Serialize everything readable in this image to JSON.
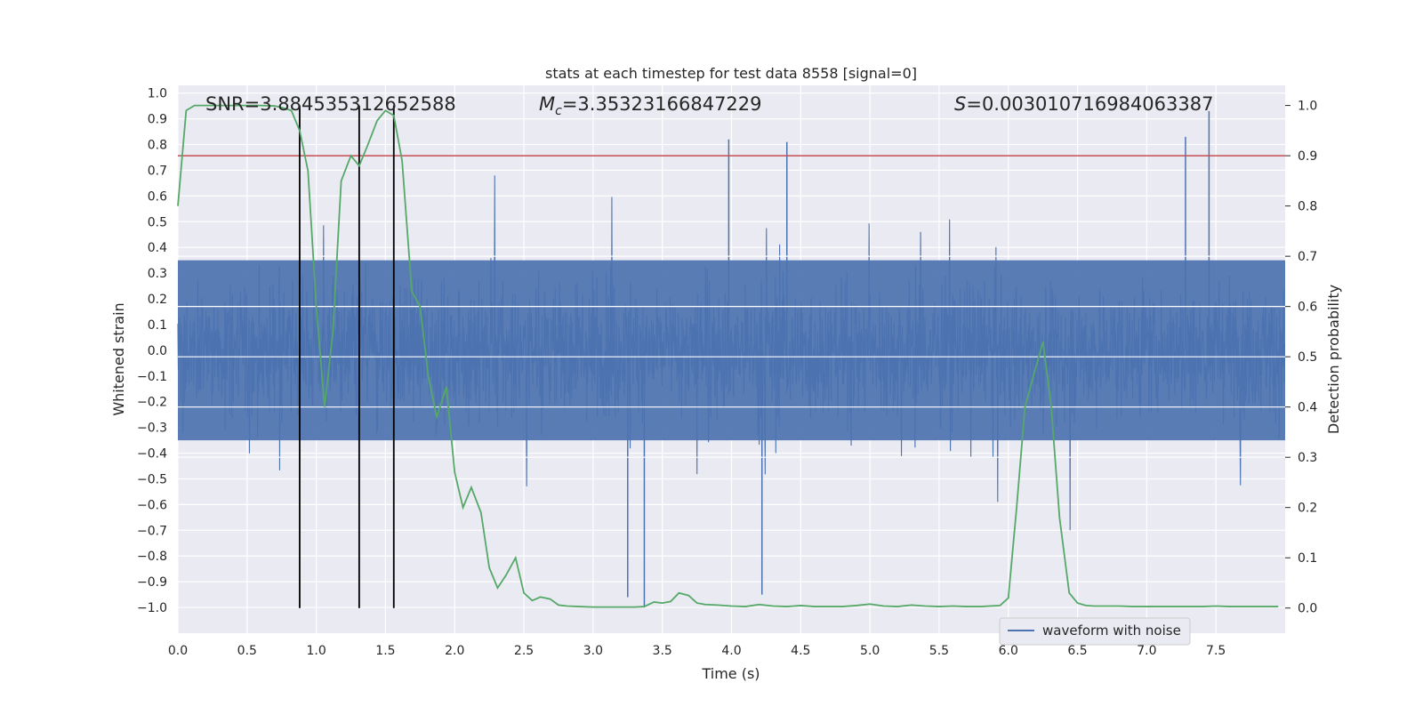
{
  "chart_data": {
    "type": "line",
    "title": "stats at each timestep for test data 8558 [signal=0]",
    "xlabel": "Time (s)",
    "ylabel": "Whitened strain",
    "y2label": "Detection probability",
    "xlim": [
      0,
      8
    ],
    "ylim": [
      -1.1,
      1.03
    ],
    "y2lim": [
      -0.05,
      1.04
    ],
    "xticks": [
      "0.0",
      "0.5",
      "1.0",
      "1.5",
      "2.0",
      "2.5",
      "3.0",
      "3.5",
      "4.0",
      "4.5",
      "5.0",
      "5.5",
      "6.0",
      "6.5",
      "7.0",
      "7.5"
    ],
    "yticks": [
      "1.0",
      "0.9",
      "0.8",
      "0.7",
      "0.6",
      "0.5",
      "0.4",
      "0.3",
      "0.2",
      "0.1",
      "0.0",
      "−0.1",
      "−0.2",
      "−0.3",
      "−0.4",
      "−0.5",
      "−0.6",
      "−0.7",
      "−0.8",
      "−0.9",
      "−1.0"
    ],
    "y2ticks": [
      "1.0",
      "0.9",
      "0.8",
      "0.7",
      "0.6",
      "0.5",
      "0.4",
      "0.3",
      "0.2",
      "0.1",
      "0.0"
    ],
    "grid": true,
    "legend_position": "bottom-right",
    "annotations": {
      "snr": "SNR=3.884535312652588",
      "mc_symbol": "M",
      "mc_sub": "c",
      "mc_value": "=3.35323166847229",
      "s_symbol": "S",
      "s_value": "=0.003010716984063387"
    },
    "series": [
      {
        "name": "waveform with noise",
        "color": "#4c72b0",
        "axis": "left",
        "description_values": {
          "core_band": [
            -0.35,
            0.35
          ],
          "typical_peak_range": [
            -0.75,
            0.8
          ],
          "notable_spikes": [
            {
              "x": 3.25,
              "y": -0.96
            },
            {
              "x": 3.37,
              "y": -1.0
            },
            {
              "x": 4.22,
              "y": -0.95
            },
            {
              "x": 3.98,
              "y": 0.82
            },
            {
              "x": 4.4,
              "y": 0.81
            },
            {
              "x": 7.45,
              "y": 0.93
            },
            {
              "x": 7.28,
              "y": 0.83
            }
          ]
        }
      },
      {
        "name": "detection probability",
        "color": "#55a868",
        "axis": "right",
        "x": [
          0.0,
          0.06,
          0.12,
          0.2,
          0.3,
          0.4,
          0.5,
          0.6,
          0.7,
          0.76,
          0.82,
          0.88,
          0.94,
          1.0,
          1.06,
          1.12,
          1.18,
          1.25,
          1.31,
          1.37,
          1.44,
          1.5,
          1.56,
          1.62,
          1.69,
          1.75,
          1.81,
          1.87,
          1.94,
          2.0,
          2.06,
          2.12,
          2.19,
          2.25,
          2.31,
          2.37,
          2.44,
          2.5,
          2.56,
          2.62,
          2.69,
          2.75,
          2.81,
          2.9,
          3.0,
          3.1,
          3.2,
          3.3,
          3.37,
          3.44,
          3.5,
          3.56,
          3.62,
          3.69,
          3.75,
          3.81,
          3.9,
          4.0,
          4.1,
          4.2,
          4.3,
          4.4,
          4.5,
          4.6,
          4.7,
          4.8,
          4.9,
          5.0,
          5.1,
          5.2,
          5.3,
          5.4,
          5.5,
          5.6,
          5.7,
          5.8,
          5.94,
          6.0,
          6.06,
          6.12,
          6.19,
          6.25,
          6.31,
          6.37,
          6.44,
          6.5,
          6.56,
          6.62,
          6.7,
          6.8,
          6.9,
          7.0,
          7.1,
          7.2,
          7.3,
          7.4,
          7.5,
          7.6,
          7.7,
          7.8,
          7.95
        ],
        "y": [
          0.8,
          0.99,
          1.0,
          1.0,
          1.0,
          1.0,
          1.0,
          1.0,
          0.999,
          0.995,
          0.99,
          0.95,
          0.87,
          0.6,
          0.4,
          0.55,
          0.85,
          0.9,
          0.88,
          0.92,
          0.97,
          0.99,
          0.98,
          0.89,
          0.63,
          0.6,
          0.46,
          0.38,
          0.44,
          0.27,
          0.2,
          0.24,
          0.19,
          0.08,
          0.04,
          0.065,
          0.1,
          0.03,
          0.015,
          0.022,
          0.018,
          0.006,
          0.004,
          0.003,
          0.002,
          0.002,
          0.002,
          0.002,
          0.003,
          0.012,
          0.01,
          0.013,
          0.03,
          0.025,
          0.01,
          0.007,
          0.006,
          0.004,
          0.003,
          0.007,
          0.004,
          0.003,
          0.005,
          0.003,
          0.003,
          0.003,
          0.005,
          0.008,
          0.004,
          0.003,
          0.006,
          0.004,
          0.003,
          0.004,
          0.003,
          0.003,
          0.005,
          0.02,
          0.2,
          0.4,
          0.47,
          0.53,
          0.4,
          0.18,
          0.03,
          0.01,
          0.005,
          0.004,
          0.004,
          0.004,
          0.003,
          0.003,
          0.003,
          0.003,
          0.003,
          0.003,
          0.004,
          0.003,
          0.003,
          0.003,
          0.003
        ]
      }
    ],
    "reference_lines": {
      "threshold_y2": 0.9,
      "threshold_color": "#c44e52",
      "vertical_markers_x": [
        0.88,
        1.31,
        1.56
      ],
      "vertical_marker_color": "#000000",
      "vertical_marker_y2_range": [
        0.0,
        1.0
      ]
    }
  }
}
